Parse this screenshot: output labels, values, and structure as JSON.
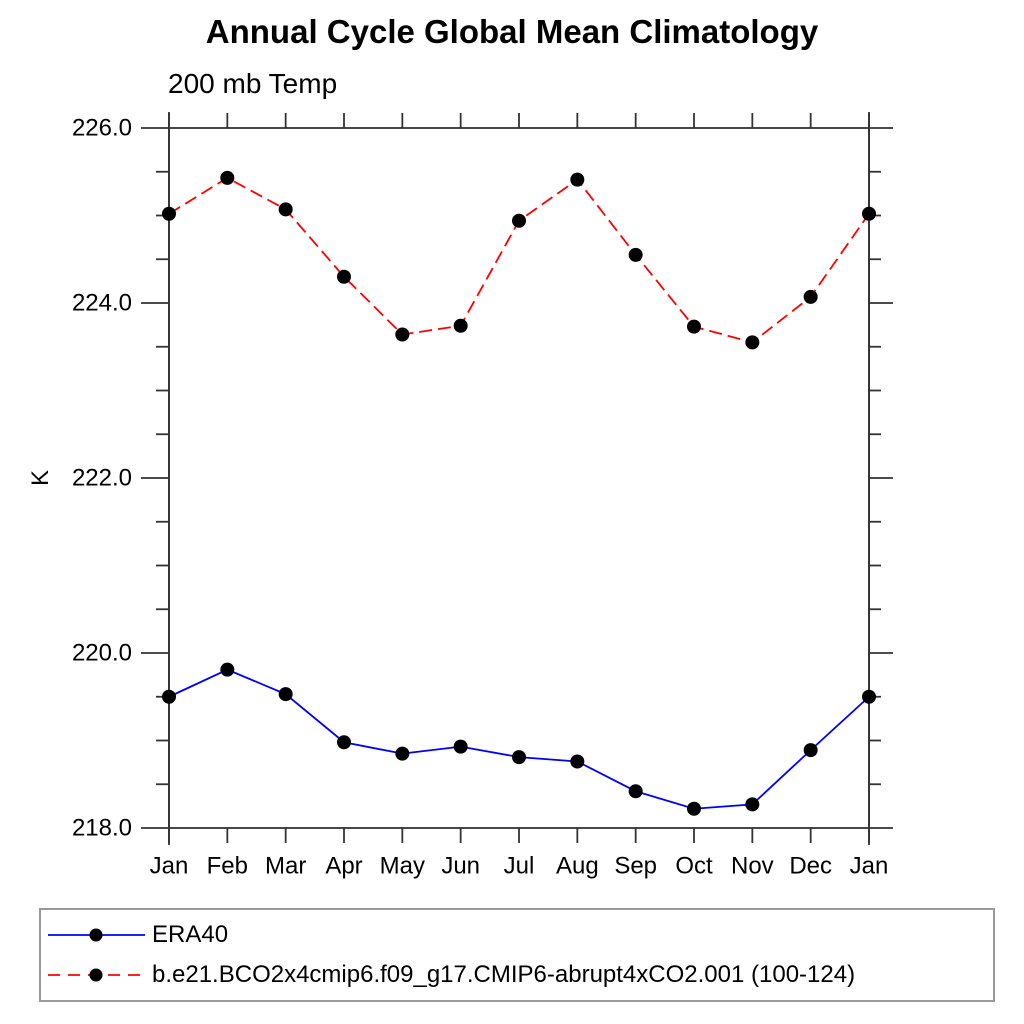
{
  "chart_data": {
    "type": "line",
    "title": "Annual Cycle Global Mean Climatology",
    "subtitle": "200 mb Temp",
    "ylabel": "K",
    "xlabel": "",
    "x_categories": [
      "Jan",
      "Feb",
      "Mar",
      "Apr",
      "May",
      "Jun",
      "Jul",
      "Aug",
      "Sep",
      "Oct",
      "Nov",
      "Dec",
      "Jan"
    ],
    "ylim": [
      218.0,
      226.0
    ],
    "ytick_major": [
      218.0,
      220.0,
      222.0,
      224.0,
      226.0
    ],
    "ytick_major_labels": [
      "218.0",
      "220.0",
      "222.0",
      "224.0",
      "226.0"
    ],
    "ytick_minor_step": 0.5,
    "grid": false,
    "legend_position": "bottom-left-box",
    "series": [
      {
        "name": "ERA40",
        "color": "#0000ff",
        "line_style": "solid",
        "marker": "black-filled-circle",
        "values": [
          219.5,
          219.81,
          219.53,
          218.98,
          218.85,
          218.93,
          218.81,
          218.76,
          218.42,
          218.22,
          218.27,
          218.89,
          219.5
        ]
      },
      {
        "name": "b.e21.BCO2x4cmip6.f09_g17.CMIP6-abrupt4xCO2.001 (100-124)",
        "color": "#ff0000",
        "line_style": "dashed",
        "marker": "black-filled-circle",
        "values": [
          225.02,
          225.43,
          225.07,
          224.3,
          223.64,
          223.74,
          224.94,
          225.41,
          224.55,
          223.73,
          223.55,
          224.07,
          225.02
        ]
      }
    ]
  },
  "style": {
    "axis_color": "#333333",
    "marker_color": "#000000",
    "legend_border_color": "#999999"
  }
}
